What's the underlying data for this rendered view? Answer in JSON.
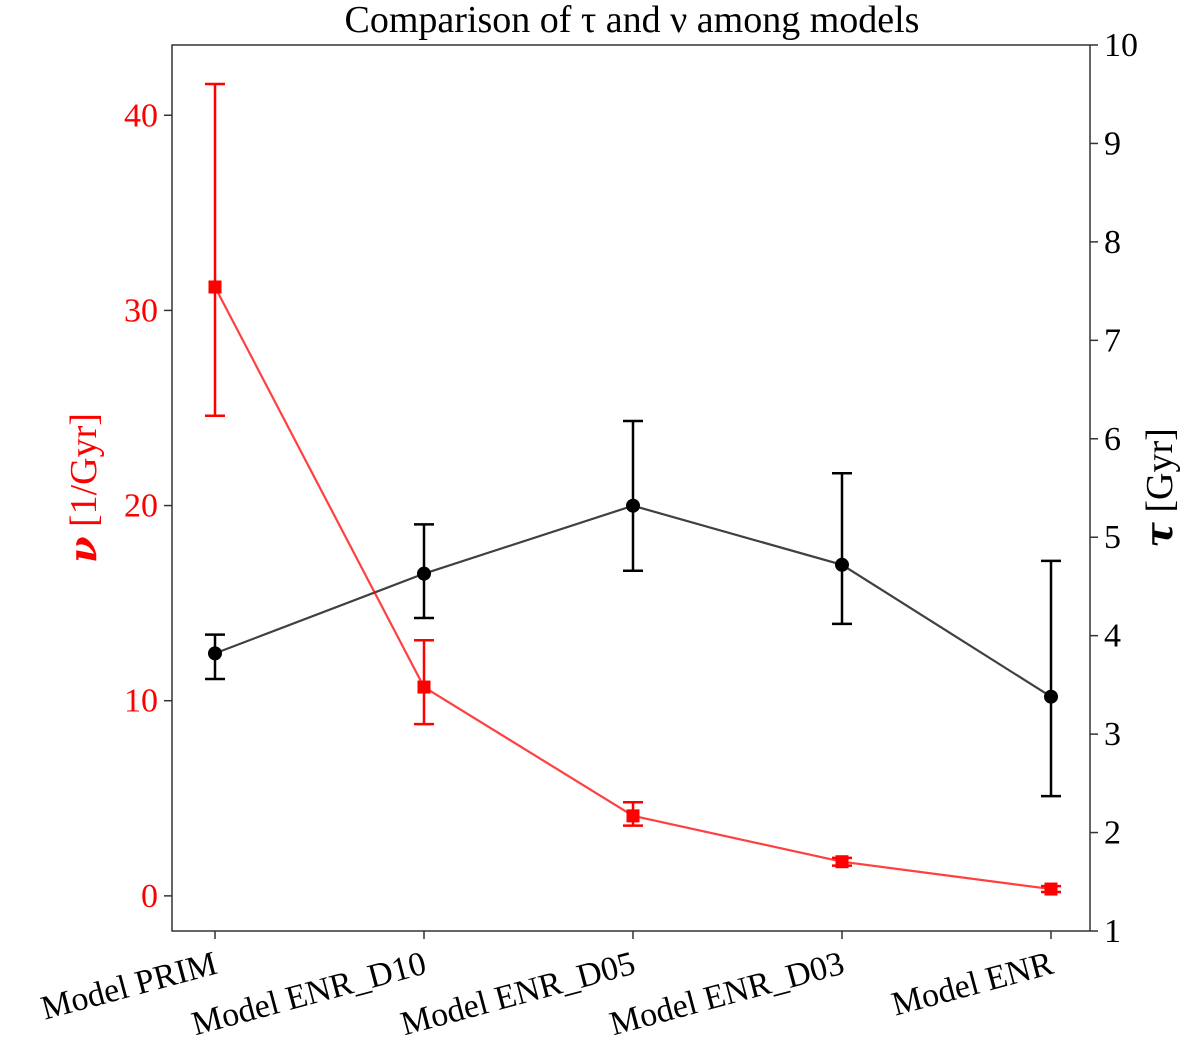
{
  "chart_data": {
    "type": "line",
    "title": "Comparison of τ and ν among models",
    "categories": [
      "Model PRIM",
      "Model ENR_D10",
      "Model ENR_D05",
      "Model ENR_D03",
      "Model ENR"
    ],
    "left_axis": {
      "label_symbol": "ν",
      "label_unit": " [1/Gyr]",
      "color": "#ff0000",
      "ylim": [
        -1.8,
        43.6
      ],
      "ticks": [
        0,
        10,
        20,
        30,
        40
      ]
    },
    "right_axis": {
      "label_symbol": "τ",
      "label_unit": " [Gyr]",
      "color": "#000000",
      "ylim": [
        1,
        10
      ],
      "ticks": [
        1,
        2,
        3,
        4,
        5,
        6,
        7,
        8,
        9,
        10
      ]
    },
    "series": [
      {
        "axis": "left",
        "color": "#ff0000",
        "marker": "square",
        "values": [
          31.2,
          10.7,
          4.1,
          1.75,
          0.35
        ],
        "err_low": [
          24.6,
          8.8,
          3.6,
          1.55,
          0.2
        ],
        "err_high": [
          41.6,
          13.1,
          4.8,
          1.95,
          0.5
        ]
      },
      {
        "axis": "right",
        "color": "#000000",
        "marker": "circle",
        "values": [
          3.82,
          4.63,
          5.32,
          4.72,
          3.38
        ],
        "err_low": [
          3.56,
          4.18,
          4.66,
          4.12,
          2.37
        ],
        "err_high": [
          4.01,
          5.13,
          6.18,
          5.65,
          4.76
        ]
      }
    ],
    "grid": false,
    "legend": "none"
  }
}
